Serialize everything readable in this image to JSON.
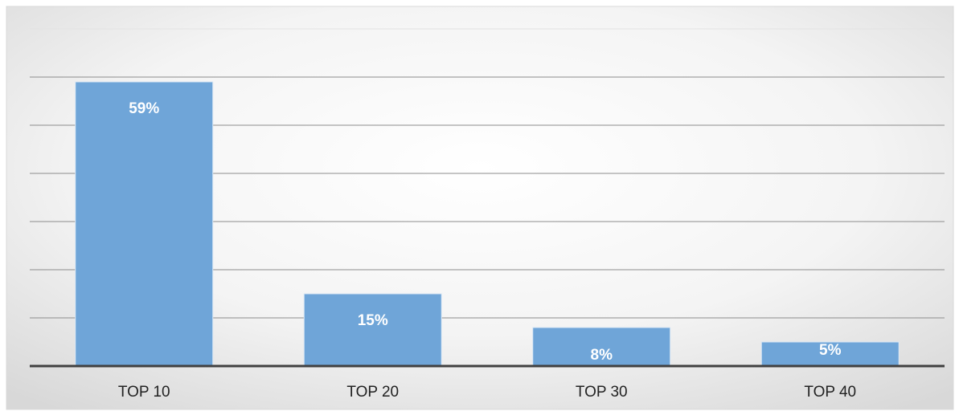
{
  "chart_data": {
    "type": "bar",
    "title": "",
    "xlabel": "",
    "ylabel": "",
    "categories": [
      "TOP 10",
      "TOP 20",
      "TOP 30",
      "TOP 40"
    ],
    "values": [
      59,
      15,
      8,
      5
    ],
    "data_labels": [
      "59%",
      "15%",
      "8%",
      "5%"
    ],
    "ylim": [
      0,
      70
    ],
    "gridlines": [
      10,
      20,
      30,
      40,
      50,
      60,
      70
    ],
    "grid": true,
    "legend": "none",
    "colors": {
      "bar": "#6fa5d8",
      "bar_border": "#dbe8f5",
      "grid": "#8c8c8c",
      "axis": "#404040",
      "background_center": "#ffffff",
      "background_edge": "#d8d8d8"
    }
  }
}
